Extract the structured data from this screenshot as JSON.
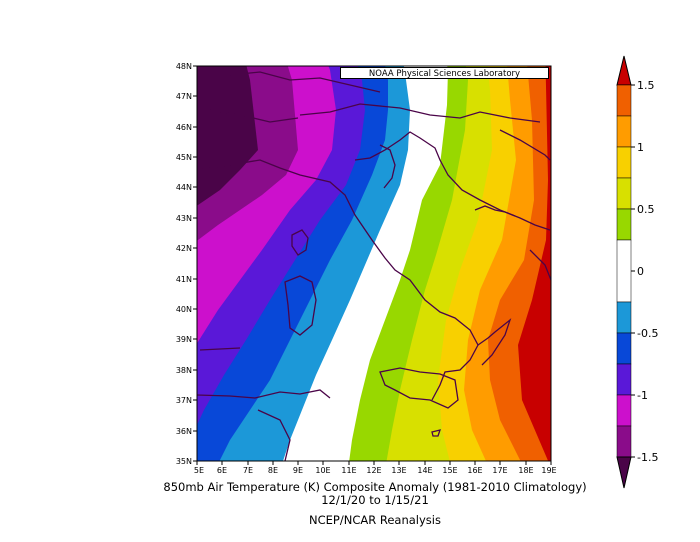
{
  "map": {
    "credit": "NOAA Physical Sciences Laboratory",
    "lat_labels": [
      "48N",
      "47N",
      "46N",
      "45N",
      "44N",
      "43N",
      "42N",
      "41N",
      "40N",
      "39N",
      "38N",
      "37N",
      "36N",
      "35N"
    ],
    "lon_labels": [
      "5E",
      "6E",
      "7E",
      "8E",
      "9E",
      "10E",
      "11E",
      "12E",
      "13E",
      "14E",
      "15E",
      "16E",
      "17E",
      "18E",
      "19E"
    ]
  },
  "colorbar": {
    "labels": [
      "1.5",
      "1",
      "0.5",
      "0",
      "-0.5",
      "-1",
      "-1.5"
    ],
    "colors": [
      "#c80000",
      "#f06000",
      "#ff9c00",
      "#f8d000",
      "#d8e000",
      "#98d800",
      "#ffffff",
      "#1c98d8",
      "#0848d8",
      "#5a18d8",
      "#cc10cc",
      "#8a0c8a",
      "#4a0448"
    ]
  },
  "title": {
    "line1": "850mb Air Temperature (K) Composite Anomaly (1981-2010 Climatology)",
    "line2": "12/1/20 to 1/15/21",
    "line3": "NCEP/NCAR Reanalysis"
  }
}
